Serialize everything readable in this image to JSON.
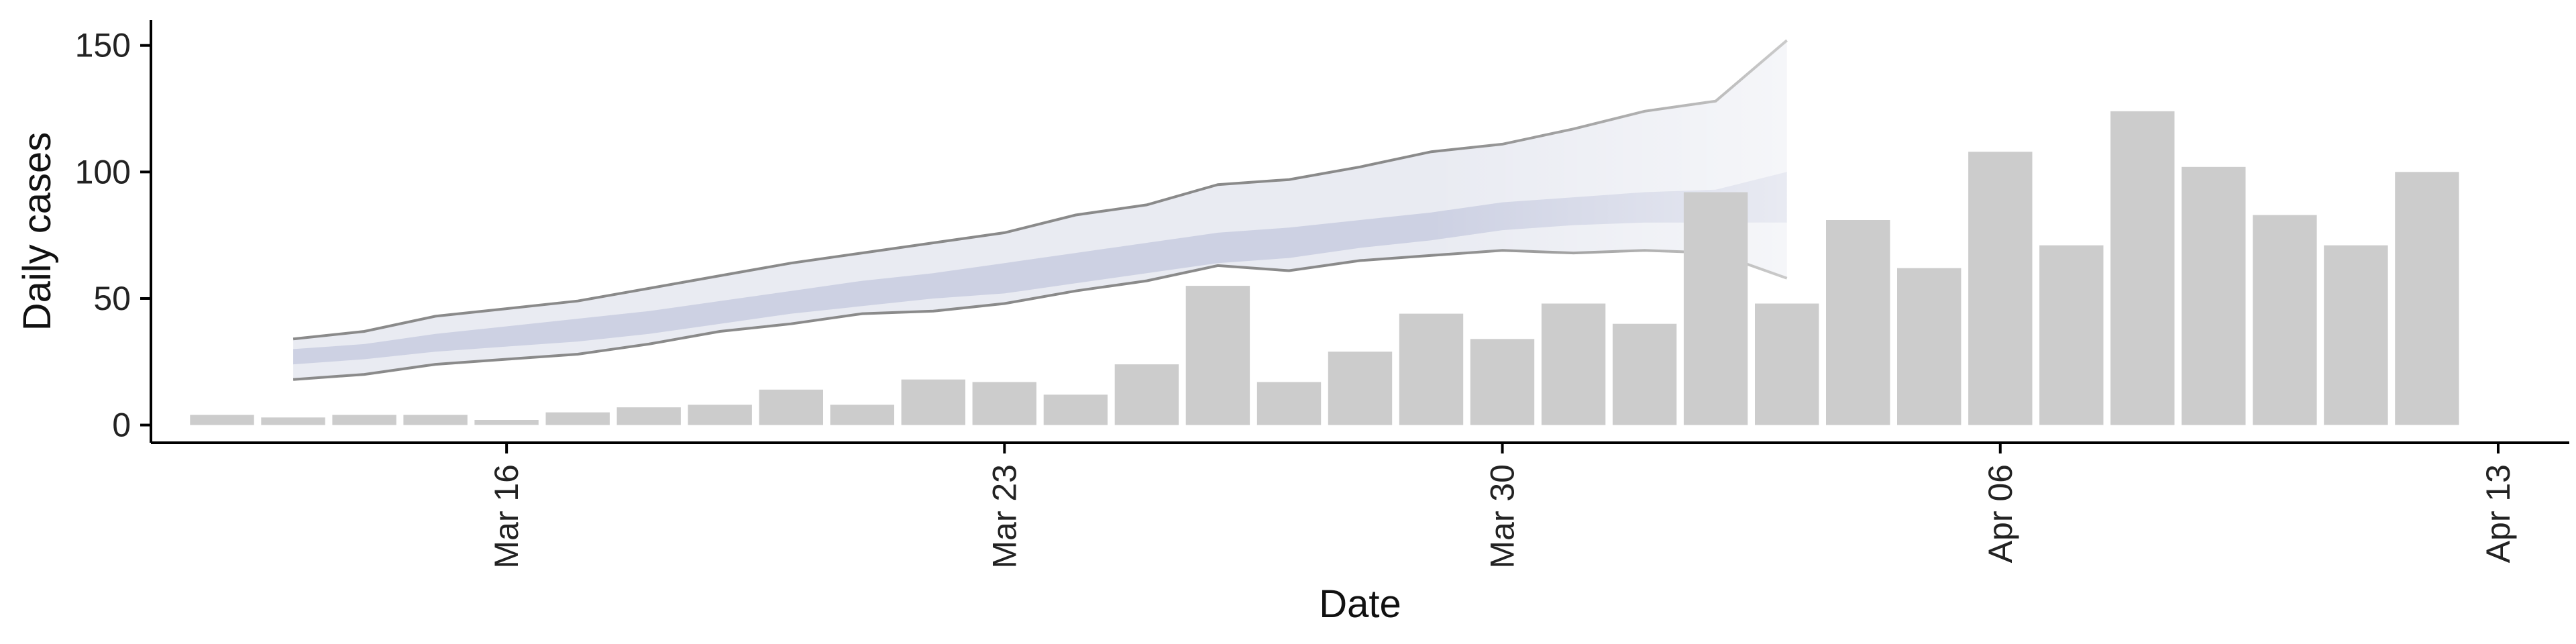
{
  "chart_data": {
    "type": "bar",
    "xlabel": "Date",
    "ylabel": "Daily cases",
    "ylim": [
      -7,
      160
    ],
    "yticks": [
      0,
      50,
      100,
      150
    ],
    "xticks": [
      {
        "date": "2020-03-16",
        "label": "Mar 16"
      },
      {
        "date": "2020-03-23",
        "label": "Mar 23"
      },
      {
        "date": "2020-03-30",
        "label": "Mar 30"
      },
      {
        "date": "2020-04-06",
        "label": "Apr 06"
      },
      {
        "date": "2020-04-13",
        "label": "Apr 13"
      }
    ],
    "xlim": [
      "2020-03-11",
      "2020-04-14"
    ],
    "grid": false,
    "bars": {
      "color": "#cccccc",
      "dates": [
        "2020-03-12",
        "2020-03-13",
        "2020-03-14",
        "2020-03-15",
        "2020-03-16",
        "2020-03-17",
        "2020-03-18",
        "2020-03-19",
        "2020-03-20",
        "2020-03-21",
        "2020-03-22",
        "2020-03-23",
        "2020-03-24",
        "2020-03-25",
        "2020-03-26",
        "2020-03-27",
        "2020-03-28",
        "2020-03-29",
        "2020-03-30",
        "2020-03-31",
        "2020-04-01",
        "2020-04-02",
        "2020-04-03",
        "2020-04-04",
        "2020-04-05",
        "2020-04-06",
        "2020-04-07",
        "2020-04-08",
        "2020-04-09",
        "2020-04-10",
        "2020-04-11",
        "2020-04-12",
        "2020-04-13"
      ],
      "values": [
        4,
        3,
        4,
        4,
        2,
        5,
        7,
        8,
        14,
        8,
        18,
        17,
        12,
        24,
        55,
        17,
        29,
        44,
        34,
        48,
        40,
        92,
        48,
        81,
        62,
        108,
        71,
        124,
        102,
        83,
        71,
        100,
        0
      ]
    },
    "forecast": {
      "dates": [
        "2020-03-13",
        "2020-03-14",
        "2020-03-15",
        "2020-03-16",
        "2020-03-17",
        "2020-03-18",
        "2020-03-19",
        "2020-03-20",
        "2020-03-21",
        "2020-03-22",
        "2020-03-23",
        "2020-03-24",
        "2020-03-25",
        "2020-03-26",
        "2020-03-27",
        "2020-03-28",
        "2020-03-29",
        "2020-03-30",
        "2020-03-31",
        "2020-04-01",
        "2020-04-02",
        "2020-04-03"
      ],
      "upper_90": [
        34,
        37,
        43,
        46,
        49,
        54,
        59,
        64,
        68,
        72,
        76,
        83,
        87,
        95,
        97,
        102,
        108,
        111,
        117,
        124,
        128,
        152
      ],
      "lower_90": [
        18,
        20,
        24,
        26,
        28,
        32,
        37,
        40,
        44,
        45,
        48,
        53,
        57,
        63,
        61,
        65,
        67,
        69,
        68,
        69,
        68,
        58
      ],
      "upper_50": [
        30,
        32,
        36,
        39,
        42,
        45,
        49,
        53,
        57,
        60,
        64,
        68,
        72,
        76,
        78,
        81,
        84,
        88,
        90,
        92,
        93,
        100
      ],
      "lower_50": [
        24,
        26,
        29,
        31,
        33,
        36,
        40,
        44,
        47,
        50,
        52,
        56,
        60,
        64,
        66,
        70,
        73,
        77,
        79,
        80,
        80,
        80
      ],
      "band90_color": "#e9ebf2",
      "band50_color": "#c5cbdf",
      "line_color": "#8a8a8a"
    }
  }
}
